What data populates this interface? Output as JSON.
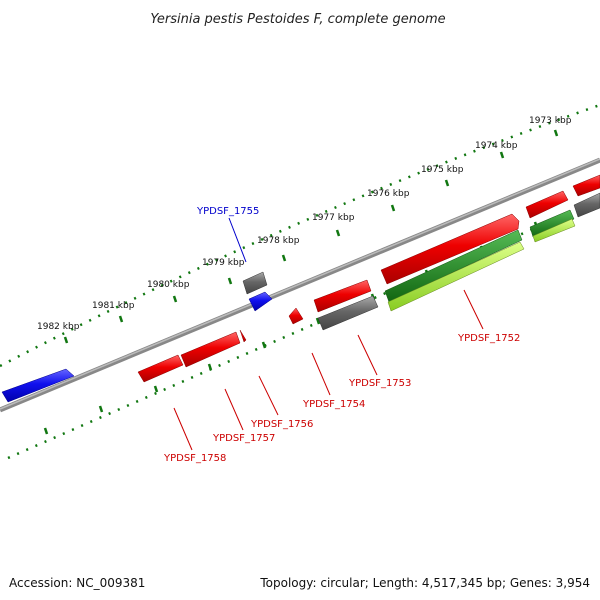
{
  "title": "Yersinia pestis Pestoides F, complete genome",
  "footer": {
    "accession": "Accession: NC_009381",
    "summary": "Topology: circular; Length: 4,517,345 bp; Genes: 3,954"
  },
  "ticks": [
    {
      "label": "1973 kbp"
    },
    {
      "label": "1974 kbp"
    },
    {
      "label": "1975 kbp"
    },
    {
      "label": "1976 kbp"
    },
    {
      "label": "1977 kbp"
    },
    {
      "label": "1978 kbp"
    },
    {
      "label": "1979 kbp"
    },
    {
      "label": "1980 kbp"
    },
    {
      "label": "1981 kbp"
    },
    {
      "label": "1982 kbp"
    }
  ],
  "gene_labels": [
    {
      "label": "YPDSF_1755",
      "color": "#0000cc"
    },
    {
      "label": "YPDSF_1752",
      "color": "#cc0000"
    },
    {
      "label": "YPDSF_1753",
      "color": "#cc0000"
    },
    {
      "label": "YPDSF_1754",
      "color": "#cc0000"
    },
    {
      "label": "YPDSF_1756",
      "color": "#cc0000"
    },
    {
      "label": "YPDSF_1757",
      "color": "#cc0000"
    },
    {
      "label": "YPDSF_1758",
      "color": "#cc0000"
    }
  ],
  "colors": {
    "forward_gene": "#1010ee",
    "reverse_gene": "#ee0000",
    "other_feature": "#666666",
    "rrna_dark": "#228822",
    "rrna_light": "#aaee44",
    "backbone": "#777777",
    "tick": "#117711"
  }
}
